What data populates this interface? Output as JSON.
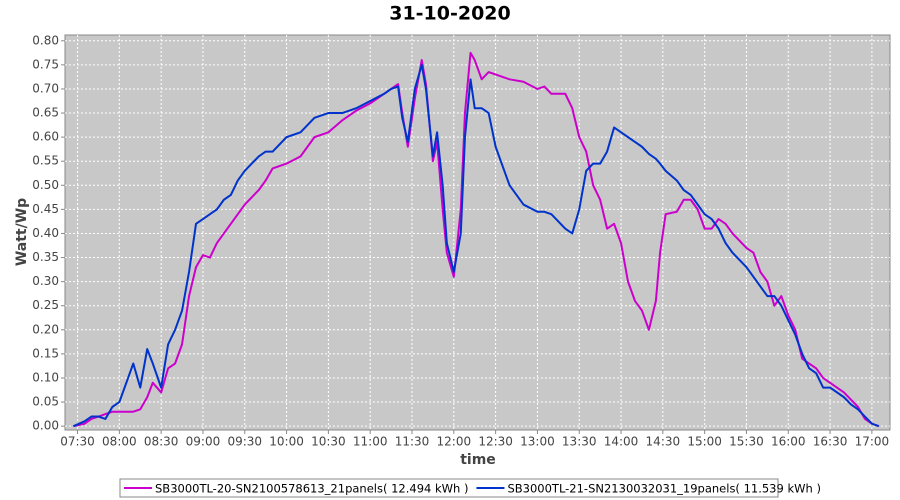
{
  "chart_data": {
    "type": "line",
    "title": "31-10-2020",
    "x_label": "time",
    "y_label": "Watt/Wp",
    "x": [
      "07:27",
      "07:35",
      "07:40",
      "07:45",
      "07:50",
      "07:55",
      "08:00",
      "08:10",
      "08:15",
      "08:20",
      "08:24",
      "08:30",
      "08:35",
      "08:40",
      "08:45",
      "08:50",
      "08:55",
      "09:00",
      "09:05",
      "09:10",
      "09:15",
      "09:20",
      "09:25",
      "09:30",
      "09:40",
      "09:45",
      "09:50",
      "10:00",
      "10:10",
      "10:15",
      "10:20",
      "10:30",
      "10:40",
      "10:50",
      "11:00",
      "11:10",
      "11:15",
      "11:20",
      "11:23",
      "11:27",
      "11:32",
      "11:37",
      "11:40",
      "11:45",
      "11:48",
      "11:52",
      "11:55",
      "12:00",
      "12:05",
      "12:08",
      "12:12",
      "12:15",
      "12:20",
      "12:25",
      "12:30",
      "12:40",
      "12:50",
      "13:00",
      "13:05",
      "13:10",
      "13:20",
      "13:25",
      "13:30",
      "13:35",
      "13:40",
      "13:45",
      "13:50",
      "13:55",
      "14:00",
      "14:05",
      "14:10",
      "14:15",
      "14:20",
      "14:25",
      "14:28",
      "14:32",
      "14:40",
      "14:45",
      "14:50",
      "14:55",
      "15:00",
      "15:05",
      "15:10",
      "15:15",
      "15:20",
      "15:30",
      "15:35",
      "15:40",
      "15:45",
      "15:50",
      "15:55",
      "16:00",
      "16:05",
      "16:10",
      "16:15",
      "16:20",
      "16:25",
      "16:30",
      "16:40",
      "16:45",
      "16:50",
      "16:55",
      "17:00",
      "17:05"
    ],
    "series": [
      {
        "name": "SB3000TL-20-SN2100578613_21panels( 12.494 kWh )",
        "color": "#cc00cc",
        "values": [
          0.0,
          0.005,
          0.015,
          0.02,
          0.025,
          0.03,
          0.03,
          0.03,
          0.035,
          0.06,
          0.09,
          0.07,
          0.12,
          0.13,
          0.17,
          0.27,
          0.33,
          0.355,
          0.35,
          0.38,
          0.4,
          0.42,
          0.44,
          0.46,
          0.49,
          0.51,
          0.535,
          0.545,
          0.56,
          0.58,
          0.6,
          0.61,
          0.635,
          0.655,
          0.67,
          0.69,
          0.7,
          0.71,
          0.65,
          0.58,
          0.68,
          0.76,
          0.71,
          0.55,
          0.59,
          0.45,
          0.36,
          0.31,
          0.45,
          0.65,
          0.775,
          0.76,
          0.72,
          0.735,
          0.73,
          0.72,
          0.715,
          0.7,
          0.705,
          0.69,
          0.69,
          0.66,
          0.6,
          0.57,
          0.5,
          0.47,
          0.41,
          0.42,
          0.38,
          0.3,
          0.26,
          0.24,
          0.2,
          0.26,
          0.36,
          0.44,
          0.445,
          0.47,
          0.47,
          0.45,
          0.41,
          0.41,
          0.43,
          0.42,
          0.4,
          0.37,
          0.36,
          0.32,
          0.3,
          0.25,
          0.27,
          0.23,
          0.2,
          0.14,
          0.13,
          0.12,
          0.1,
          0.09,
          0.07,
          0.055,
          0.04,
          0.015,
          0.005,
          0.0
        ]
      },
      {
        "name": "SB3000TL-21-SN2130032031_19panels( 11.539 kWh )",
        "color": "#0033cc",
        "values": [
          0.0,
          0.01,
          0.02,
          0.02,
          0.015,
          0.04,
          0.05,
          0.13,
          0.08,
          0.16,
          0.13,
          0.08,
          0.17,
          0.2,
          0.24,
          0.32,
          0.42,
          0.43,
          0.44,
          0.45,
          0.47,
          0.48,
          0.51,
          0.53,
          0.56,
          0.57,
          0.57,
          0.6,
          0.61,
          0.625,
          0.64,
          0.65,
          0.65,
          0.66,
          0.675,
          0.69,
          0.7,
          0.705,
          0.64,
          0.59,
          0.7,
          0.75,
          0.7,
          0.56,
          0.61,
          0.5,
          0.38,
          0.32,
          0.4,
          0.6,
          0.72,
          0.66,
          0.66,
          0.65,
          0.58,
          0.5,
          0.46,
          0.445,
          0.445,
          0.44,
          0.41,
          0.4,
          0.45,
          0.53,
          0.545,
          0.545,
          0.57,
          0.62,
          0.61,
          0.6,
          0.59,
          0.58,
          0.565,
          0.555,
          0.545,
          0.53,
          0.51,
          0.49,
          0.48,
          0.46,
          0.44,
          0.43,
          0.41,
          0.38,
          0.36,
          0.33,
          0.31,
          0.29,
          0.27,
          0.27,
          0.25,
          0.22,
          0.19,
          0.15,
          0.12,
          0.11,
          0.08,
          0.08,
          0.06,
          0.045,
          0.035,
          0.02,
          0.005,
          0.0
        ]
      }
    ],
    "xlim": [
      "07:21",
      "17:13"
    ],
    "xticks": [
      "07:30",
      "08:00",
      "08:30",
      "09:00",
      "09:30",
      "10:00",
      "10:30",
      "11:00",
      "11:30",
      "12:00",
      "12:30",
      "13:00",
      "13:30",
      "14:00",
      "14:30",
      "15:00",
      "15:30",
      "16:00",
      "16:30",
      "17:00"
    ],
    "ylim": [
      -0.008,
      0.812
    ],
    "yticks": [
      {
        "value": 0,
        "label": "0.00"
      },
      {
        "value": 0.05,
        "label": "0.05"
      },
      {
        "value": 0.1,
        "label": "0.10"
      },
      {
        "value": 0.15,
        "label": "0.15"
      },
      {
        "value": 0.2,
        "label": "0.20"
      },
      {
        "value": 0.25,
        "label": "0.25"
      },
      {
        "value": 0.3,
        "label": "0.30"
      },
      {
        "value": 0.35,
        "label": "0.35"
      },
      {
        "value": 0.4,
        "label": "0.40"
      },
      {
        "value": 0.45,
        "label": "0.45"
      },
      {
        "value": 0.5,
        "label": "0.50"
      },
      {
        "value": 0.55,
        "label": "0.55"
      },
      {
        "value": 0.6,
        "label": "0.60"
      },
      {
        "value": 0.65,
        "label": "0.65"
      },
      {
        "value": 0.7,
        "label": "0.70"
      },
      {
        "value": 0.75,
        "label": "0.75"
      },
      {
        "value": 0.8,
        "label": "0.80"
      }
    ],
    "grid": true
  }
}
